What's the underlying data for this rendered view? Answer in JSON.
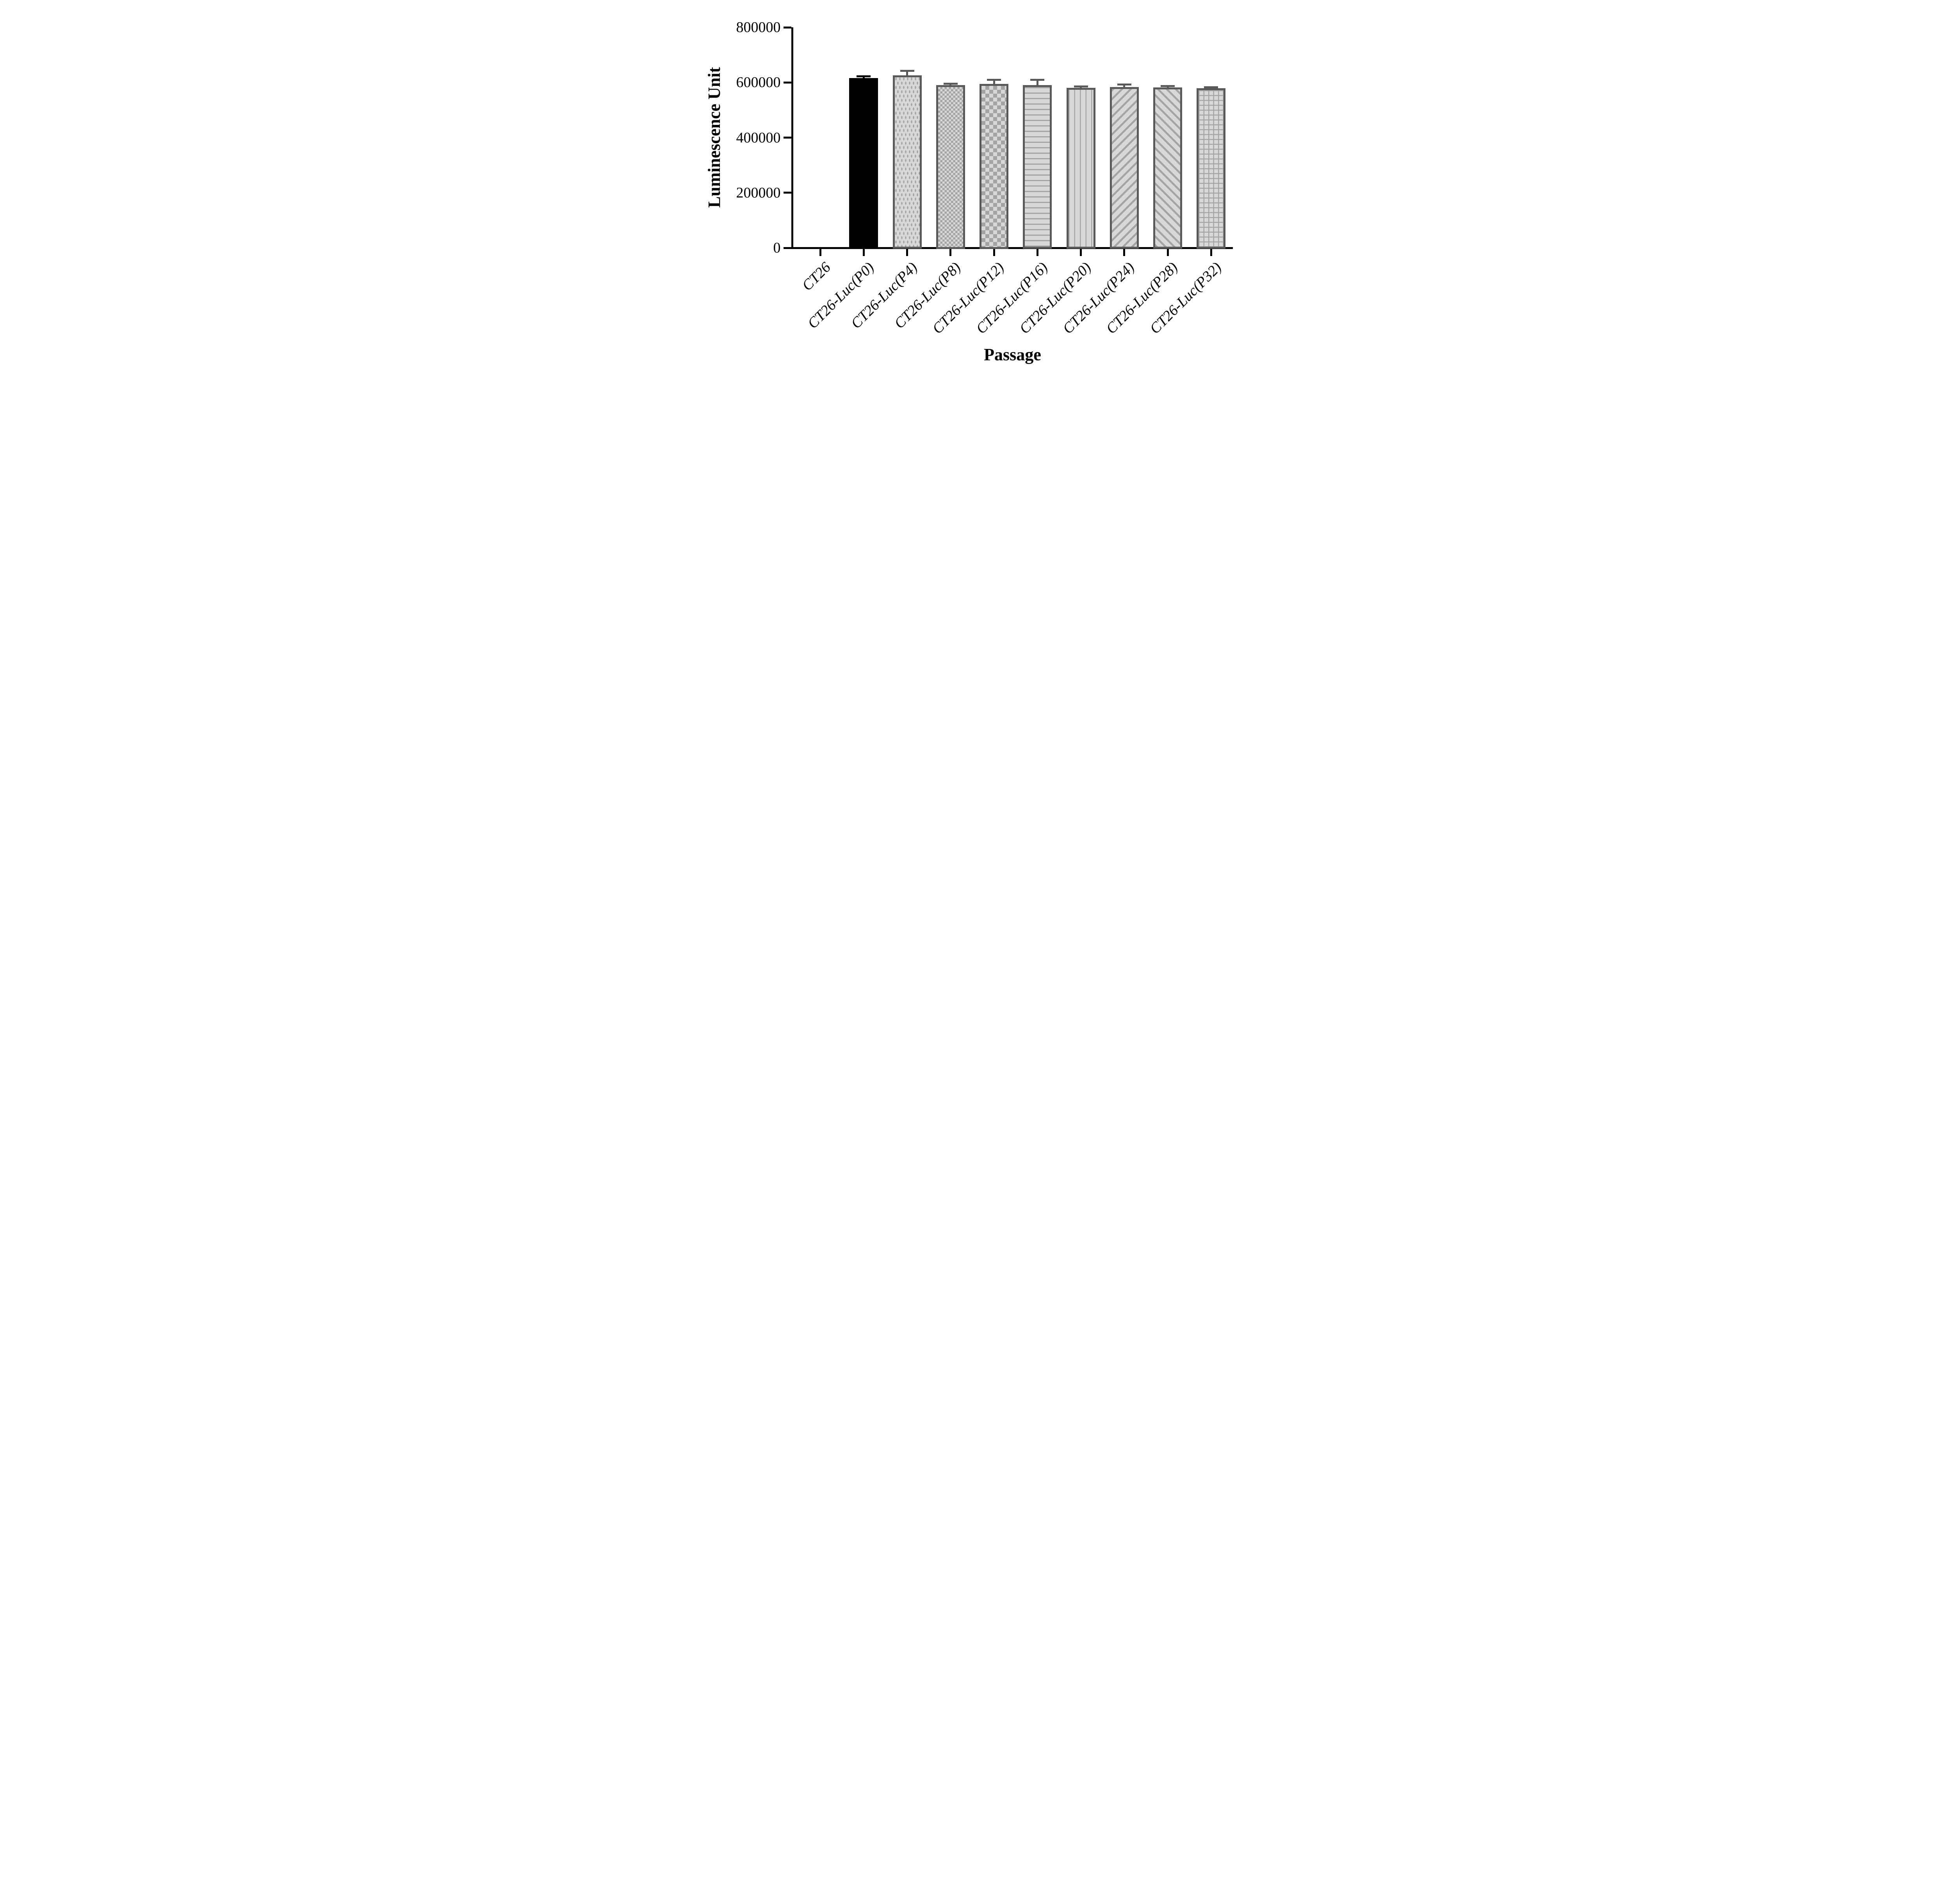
{
  "chart_data": {
    "type": "bar",
    "title": "",
    "xlabel": "Passage",
    "ylabel": "Luminescence Unit",
    "ylim": [
      0,
      800000
    ],
    "ytick_values": [
      0,
      200000,
      400000,
      600000,
      800000
    ],
    "ytick_labels": [
      "0",
      "200000",
      "400000",
      "600000",
      "800000"
    ],
    "grid": "off",
    "legend": "none",
    "categories": [
      "CT26",
      "CT26-Luc(P0)",
      "CT26-Luc(P4)",
      "CT26-Luc(P8)",
      "CT26-Luc(P12)",
      "CT26-Luc(P16)",
      "CT26-Luc(P20)",
      "CT26-Luc(P24)",
      "CT26-Luc(P28)",
      "CT26-Luc(P32)"
    ],
    "values": [
      0,
      616000,
      626000,
      590000,
      595000,
      591000,
      581000,
      583000,
      582000,
      579000
    ],
    "errors_sd_up": [
      0,
      6000,
      16000,
      5000,
      15000,
      18000,
      5000,
      10000,
      5000,
      4000
    ],
    "bar_patterns": [
      "none",
      "solid-black",
      "dots",
      "checker-small",
      "checker-large",
      "horizontal-lines",
      "vertical-lines",
      "diagonal-up",
      "diagonal-down",
      "grid"
    ],
    "colors": {
      "axis": "#000000",
      "black_bar": "#000000",
      "bar_outline": "#595959",
      "fill_light": "#d8d8d8",
      "pattern_mid": "#a4a4a4"
    }
  }
}
